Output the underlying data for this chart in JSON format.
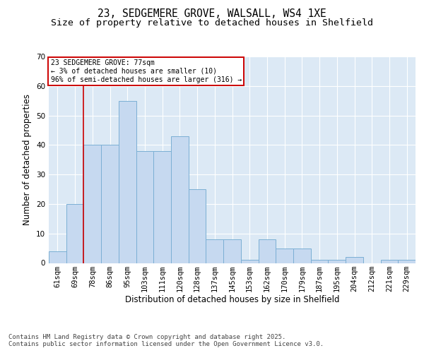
{
  "title1": "23, SEDGEMERE GROVE, WALSALL, WS4 1XE",
  "title2": "Size of property relative to detached houses in Shelfield",
  "xlabel": "Distribution of detached houses by size in Shelfield",
  "ylabel": "Number of detached properties",
  "categories": [
    "61sqm",
    "69sqm",
    "78sqm",
    "86sqm",
    "95sqm",
    "103sqm",
    "111sqm",
    "120sqm",
    "128sqm",
    "137sqm",
    "145sqm",
    "153sqm",
    "162sqm",
    "170sqm",
    "179sqm",
    "187sqm",
    "195sqm",
    "204sqm",
    "212sqm",
    "221sqm",
    "229sqm"
  ],
  "values": [
    4,
    20,
    40,
    40,
    55,
    38,
    38,
    43,
    25,
    8,
    8,
    1,
    8,
    5,
    5,
    1,
    1,
    2,
    0,
    1,
    1
  ],
  "bar_color": "#C6D9F0",
  "bar_edge_color": "#7BAFD4",
  "background_color": "#DCE9F5",
  "grid_color": "#ffffff",
  "vline_color": "#CC0000",
  "vline_x_index": 1.5,
  "annotation_text": "23 SEDGEMERE GROVE: 77sqm\n← 3% of detached houses are smaller (10)\n96% of semi-detached houses are larger (316) →",
  "annotation_box_edgecolor": "#CC0000",
  "ylim": [
    0,
    70
  ],
  "yticks": [
    0,
    10,
    20,
    30,
    40,
    50,
    60,
    70
  ],
  "footer": "Contains HM Land Registry data © Crown copyright and database right 2025.\nContains public sector information licensed under the Open Government Licence v3.0.",
  "title_fontsize": 10.5,
  "subtitle_fontsize": 9.5,
  "axis_label_fontsize": 8.5,
  "tick_fontsize": 7.5,
  "annotation_fontsize": 7,
  "footer_fontsize": 6.5
}
